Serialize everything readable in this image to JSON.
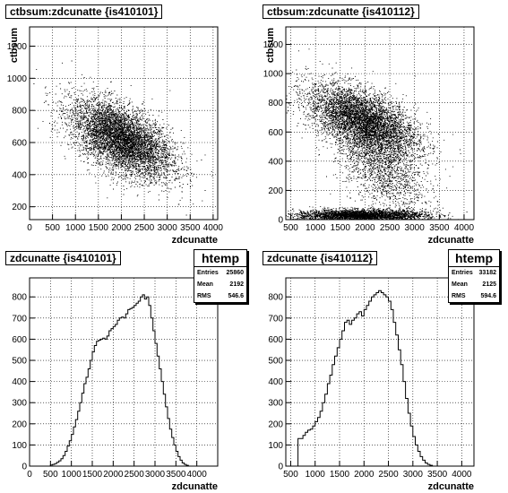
{
  "chart_data": [
    {
      "type": "scatter",
      "title": "ctbsum:zdcunatte {is410101}",
      "xlabel": "zdcunatte",
      "ylabel": "ctbsum",
      "xlim": [
        0,
        4100
      ],
      "ylim": [
        120,
        1320
      ],
      "xticks": [
        0,
        500,
        1000,
        1500,
        2000,
        2500,
        3000,
        3500,
        4000
      ],
      "yticks": [
        200,
        400,
        600,
        800,
        1000,
        1200
      ],
      "grid": true,
      "clusters": [
        {
          "x": 2000,
          "y": 620,
          "sx": 550,
          "sy": 120,
          "rho": -0.55,
          "n": 6000
        }
      ]
    },
    {
      "type": "scatter",
      "title": "ctbsum:zdcunatte {is410112}",
      "xlabel": "zdcunatte",
      "ylabel": "ctbsum",
      "xlim": [
        400,
        4200
      ],
      "ylim": [
        0,
        1320
      ],
      "xticks": [
        500,
        1000,
        1500,
        2000,
        2500,
        3000,
        3500,
        4000
      ],
      "yticks": [
        0,
        200,
        400,
        600,
        800,
        1000,
        1200
      ],
      "grid": true,
      "clusters": [
        {
          "x": 1950,
          "y": 680,
          "sx": 550,
          "sy": 120,
          "rho": -0.55,
          "n": 6500
        },
        {
          "x": 2300,
          "y": 380,
          "sx": 450,
          "sy": 170,
          "rho": -0.5,
          "n": 1800
        },
        {
          "x": 1900,
          "y": 28,
          "sx": 650,
          "sy": 20,
          "rho": 0,
          "n": 3500
        }
      ]
    },
    {
      "type": "histogram",
      "title": "zdcunatte {is410101}",
      "xlabel": "zdcunatte",
      "ylabel": "",
      "xlim": [
        0,
        4500
      ],
      "ylim": [
        0,
        890
      ],
      "xticks": [
        0,
        500,
        1000,
        1500,
        2000,
        2500,
        3000,
        3500,
        4000
      ],
      "yticks": [
        0,
        100,
        200,
        300,
        400,
        500,
        600,
        700,
        800
      ],
      "grid": true,
      "bin_width": 50,
      "bin_start": 500,
      "values": [
        5,
        8,
        12,
        18,
        25,
        35,
        50,
        70,
        95,
        120,
        150,
        185,
        220,
        260,
        300,
        345,
        390,
        420,
        460,
        500,
        540,
        570,
        590,
        595,
        600,
        605,
        600,
        615,
        640,
        650,
        660,
        670,
        690,
        700,
        705,
        700,
        720,
        740,
        745,
        750,
        760,
        770,
        780,
        800,
        810,
        790,
        800,
        760,
        700,
        640,
        580,
        520,
        460,
        400,
        340,
        280,
        225,
        175,
        135,
        100,
        70,
        45,
        28,
        15,
        8,
        4
      ],
      "stats": {
        "title": "htemp",
        "entries_label": "Entries",
        "entries": "25860",
        "mean_label": "Mean",
        "mean": "2192",
        "rms_label": "RMS",
        "rms": "546.6"
      }
    },
    {
      "type": "histogram",
      "title": "zdcunatte {is410112}",
      "xlabel": "zdcunatte",
      "ylabel": "",
      "xlim": [
        400,
        4250
      ],
      "ylim": [
        0,
        890
      ],
      "xticks": [
        500,
        1000,
        1500,
        2000,
        2500,
        3000,
        3500,
        4000
      ],
      "yticks": [
        0,
        100,
        200,
        300,
        400,
        500,
        600,
        700,
        800
      ],
      "grid": true,
      "bin_width": 50,
      "bin_start": 650,
      "values": [
        130,
        130,
        145,
        160,
        170,
        175,
        190,
        210,
        230,
        260,
        300,
        340,
        390,
        430,
        480,
        520,
        560,
        600,
        640,
        680,
        690,
        670,
        690,
        700,
        720,
        730,
        710,
        740,
        760,
        780,
        800,
        810,
        820,
        830,
        820,
        810,
        800,
        780,
        740,
        680,
        620,
        550,
        480,
        400,
        320,
        250,
        190,
        140,
        100,
        70,
        45,
        28,
        15,
        8,
        4
      ],
      "stats": {
        "title": "htemp",
        "entries_label": "Entries",
        "entries": "33182",
        "mean_label": "Mean",
        "mean": "2125",
        "rms_label": "RMS",
        "rms": "594.6"
      }
    }
  ]
}
